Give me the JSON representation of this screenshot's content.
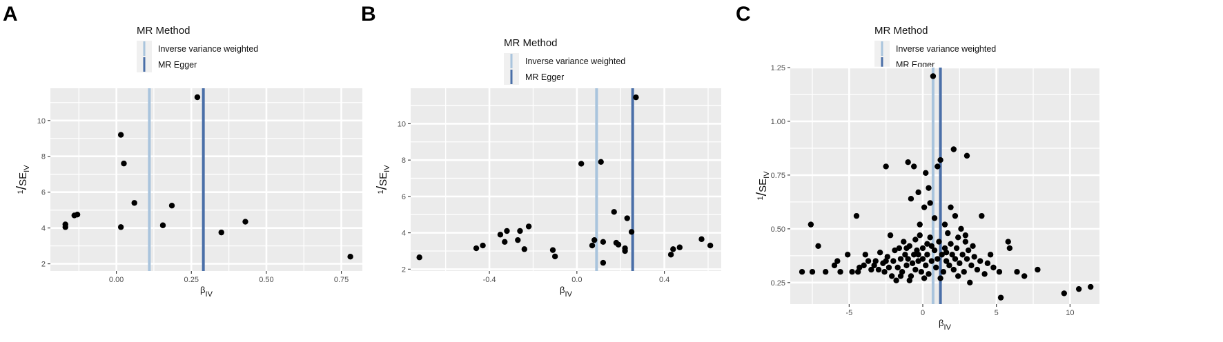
{
  "legend": {
    "title": "MR Method",
    "items": [
      {
        "label": "Inverse variance weighted",
        "color": "#a9c4dd"
      },
      {
        "label": "MR Egger",
        "color": "#4a6fa8"
      }
    ]
  },
  "axes": {
    "x_main": "β",
    "x_sub": "IV",
    "y_num": "1",
    "y_slash": "/",
    "y_main": "SE",
    "y_sub": "IV"
  },
  "chart_data": [
    {
      "panel": "A",
      "type": "scatter",
      "xlim": [
        -0.22,
        0.82
      ],
      "ylim": [
        1.6,
        11.8
      ],
      "xticks": [
        0.0,
        0.25,
        0.5,
        0.75
      ],
      "xtick_labels": [
        "0.00",
        "0.25",
        "0.50",
        "0.75"
      ],
      "yticks": [
        2,
        4,
        6,
        8,
        10
      ],
      "ytick_labels": [
        "2",
        "4",
        "6",
        "8",
        "10"
      ],
      "vlines": [
        {
          "method": "Inverse variance weighted",
          "x": 0.11
        },
        {
          "method": "MR Egger",
          "x": 0.29
        }
      ],
      "points": [
        [
          -0.17,
          4.05
        ],
        [
          -0.17,
          4.2
        ],
        [
          -0.14,
          4.7
        ],
        [
          -0.13,
          4.75
        ],
        [
          0.015,
          9.2
        ],
        [
          0.025,
          7.6
        ],
        [
          0.015,
          4.05
        ],
        [
          0.06,
          5.4
        ],
        [
          0.155,
          4.15
        ],
        [
          0.185,
          5.25
        ],
        [
          0.27,
          11.3
        ],
        [
          0.35,
          3.75
        ],
        [
          0.43,
          4.35
        ],
        [
          0.78,
          2.4
        ]
      ]
    },
    {
      "panel": "B",
      "type": "scatter",
      "xlim": [
        -0.76,
        0.66
      ],
      "ylim": [
        1.9,
        11.95
      ],
      "xticks": [
        -0.4,
        0.0,
        0.4
      ],
      "xtick_labels": [
        "-0.4",
        "0.0",
        "0.4"
      ],
      "yticks": [
        2,
        4,
        6,
        8,
        10
      ],
      "ytick_labels": [
        "2",
        "4",
        "6",
        "8",
        "10"
      ],
      "vlines": [
        {
          "method": "Inverse variance weighted",
          "x": 0.09
        },
        {
          "method": "MR Egger",
          "x": 0.255
        }
      ],
      "points": [
        [
          -0.72,
          2.65
        ],
        [
          -0.46,
          3.15
        ],
        [
          -0.43,
          3.3
        ],
        [
          -0.35,
          3.9
        ],
        [
          -0.33,
          3.5
        ],
        [
          -0.32,
          4.1
        ],
        [
          -0.27,
          3.6
        ],
        [
          -0.26,
          4.1
        ],
        [
          -0.24,
          3.1
        ],
        [
          -0.22,
          4.35
        ],
        [
          -0.11,
          3.05
        ],
        [
          -0.1,
          2.7
        ],
        [
          0.02,
          7.8
        ],
        [
          0.07,
          3.3
        ],
        [
          0.08,
          3.6
        ],
        [
          0.11,
          7.9
        ],
        [
          0.12,
          2.35
        ],
        [
          0.12,
          3.5
        ],
        [
          0.17,
          5.15
        ],
        [
          0.18,
          3.45
        ],
        [
          0.19,
          3.35
        ],
        [
          0.22,
          3.15
        ],
        [
          0.22,
          3.0
        ],
        [
          0.23,
          4.8
        ],
        [
          0.25,
          4.05
        ],
        [
          0.27,
          11.45
        ],
        [
          0.43,
          2.8
        ],
        [
          0.44,
          3.1
        ],
        [
          0.47,
          3.2
        ],
        [
          0.57,
          3.65
        ],
        [
          0.61,
          3.3
        ]
      ]
    },
    {
      "panel": "C",
      "type": "scatter",
      "xlim": [
        -9.0,
        12.0
      ],
      "ylim": [
        0.15,
        1.25
      ],
      "xticks": [
        -5,
        0,
        5,
        10
      ],
      "xtick_labels": [
        "-5",
        "0",
        "5",
        "10"
      ],
      "yticks": [
        0.25,
        0.5,
        0.75,
        1.0,
        1.25
      ],
      "ytick_labels": [
        "0.25",
        "0.50",
        "0.75",
        "1.00",
        "1.25"
      ],
      "vlines": [
        {
          "method": "Inverse variance weighted",
          "x": 0.7
        },
        {
          "method": "MR Egger",
          "x": 1.2
        }
      ],
      "points": [
        [
          -8.2,
          0.3
        ],
        [
          -7.6,
          0.52
        ],
        [
          -7.5,
          0.3
        ],
        [
          -7.1,
          0.42
        ],
        [
          -6.6,
          0.3
        ],
        [
          -5.6,
          0.3
        ],
        [
          -5.1,
          0.38
        ],
        [
          -4.5,
          0.56
        ],
        [
          -4.3,
          0.32
        ],
        [
          -3.7,
          0.35
        ],
        [
          -3.2,
          0.35
        ],
        [
          -2.5,
          0.79
        ],
        [
          -2.2,
          0.47
        ],
        [
          -1.6,
          0.41
        ],
        [
          -1.0,
          0.81
        ],
        [
          -0.6,
          0.79
        ],
        [
          -0.3,
          0.67
        ],
        [
          0.2,
          0.76
        ],
        [
          0.5,
          0.62
        ],
        [
          0.7,
          1.21
        ],
        [
          1.0,
          0.79
        ],
        [
          1.2,
          0.82
        ],
        [
          2.1,
          0.87
        ],
        [
          2.4,
          0.46
        ],
        [
          3.0,
          0.84
        ],
        [
          4.0,
          0.56
        ],
        [
          4.6,
          0.38
        ],
        [
          5.3,
          0.18
        ],
        [
          5.8,
          0.44
        ],
        [
          5.9,
          0.41
        ],
        [
          6.4,
          0.3
        ],
        [
          6.9,
          0.28
        ],
        [
          7.8,
          0.31
        ],
        [
          9.6,
          0.2
        ],
        [
          10.6,
          0.22
        ],
        [
          11.4,
          0.23
        ],
        [
          -6.0,
          0.33
        ],
        [
          -5.8,
          0.35
        ],
        [
          -4.8,
          0.3
        ],
        [
          -4.0,
          0.33
        ],
        [
          -3.9,
          0.38
        ],
        [
          -3.5,
          0.31
        ],
        [
          -3.0,
          0.31
        ],
        [
          -2.9,
          0.39
        ],
        [
          -2.7,
          0.34
        ],
        [
          -2.6,
          0.3
        ],
        [
          -2.4,
          0.37
        ],
        [
          -2.3,
          0.32
        ],
        [
          -2.1,
          0.28
        ],
        [
          -2.0,
          0.35
        ],
        [
          -1.9,
          0.4
        ],
        [
          -1.8,
          0.26
        ],
        [
          -1.7,
          0.32
        ],
        [
          -1.5,
          0.36
        ],
        [
          -1.4,
          0.3
        ],
        [
          -1.3,
          0.44
        ],
        [
          -1.2,
          0.38
        ],
        [
          -1.1,
          0.33
        ],
        [
          -1.0,
          0.36
        ],
        [
          -0.9,
          0.42
        ],
        [
          -0.8,
          0.28
        ],
        [
          -0.7,
          0.34
        ],
        [
          -0.6,
          0.38
        ],
        [
          -0.5,
          0.45
        ],
        [
          -0.5,
          0.31
        ],
        [
          -0.4,
          0.4
        ],
        [
          -0.3,
          0.35
        ],
        [
          -0.2,
          0.47
        ],
        [
          -0.1,
          0.3
        ],
        [
          0.0,
          0.41
        ],
        [
          0.0,
          0.36
        ],
        [
          0.1,
          0.6
        ],
        [
          0.2,
          0.33
        ],
        [
          0.3,
          0.43
        ],
        [
          0.3,
          0.38
        ],
        [
          0.4,
          0.29
        ],
        [
          0.5,
          0.46
        ],
        [
          0.6,
          0.35
        ],
        [
          0.8,
          0.4
        ],
        [
          0.9,
          0.32
        ],
        [
          1.0,
          0.36
        ],
        [
          1.1,
          0.44
        ],
        [
          1.3,
          0.38
        ],
        [
          1.4,
          0.3
        ],
        [
          1.5,
          0.41
        ],
        [
          1.6,
          0.35
        ],
        [
          1.7,
          0.48
        ],
        [
          1.8,
          0.33
        ],
        [
          1.9,
          0.43
        ],
        [
          2.0,
          0.38
        ],
        [
          2.1,
          0.31
        ],
        [
          2.2,
          0.36
        ],
        [
          2.3,
          0.41
        ],
        [
          2.5,
          0.34
        ],
        [
          2.6,
          0.5
        ],
        [
          2.7,
          0.38
        ],
        [
          2.8,
          0.3
        ],
        [
          2.9,
          0.44
        ],
        [
          3.0,
          0.36
        ],
        [
          3.1,
          0.4
        ],
        [
          3.3,
          0.33
        ],
        [
          3.5,
          0.37
        ],
        [
          3.7,
          0.31
        ],
        [
          3.9,
          0.35
        ],
        [
          4.2,
          0.29
        ],
        [
          4.4,
          0.34
        ],
        [
          4.8,
          0.32
        ],
        [
          5.2,
          0.3
        ],
        [
          0.8,
          0.55
        ],
        [
          1.5,
          0.52
        ],
        [
          2.2,
          0.56
        ],
        [
          -0.2,
          0.52
        ],
        [
          0.4,
          0.69
        ],
        [
          -0.8,
          0.64
        ],
        [
          1.9,
          0.6
        ],
        [
          -1.5,
          0.28
        ],
        [
          -0.9,
          0.26
        ],
        [
          0.1,
          0.27
        ],
        [
          1.2,
          0.27
        ],
        [
          2.4,
          0.28
        ],
        [
          3.2,
          0.25
        ],
        [
          -2.5,
          0.35
        ],
        [
          -3.3,
          0.33
        ],
        [
          -0.3,
          0.38
        ],
        [
          0.6,
          0.42
        ],
        [
          1.6,
          0.39
        ],
        [
          2.9,
          0.47
        ],
        [
          3.4,
          0.42
        ],
        [
          -4.4,
          0.3
        ],
        [
          -1.1,
          0.41
        ]
      ]
    }
  ]
}
